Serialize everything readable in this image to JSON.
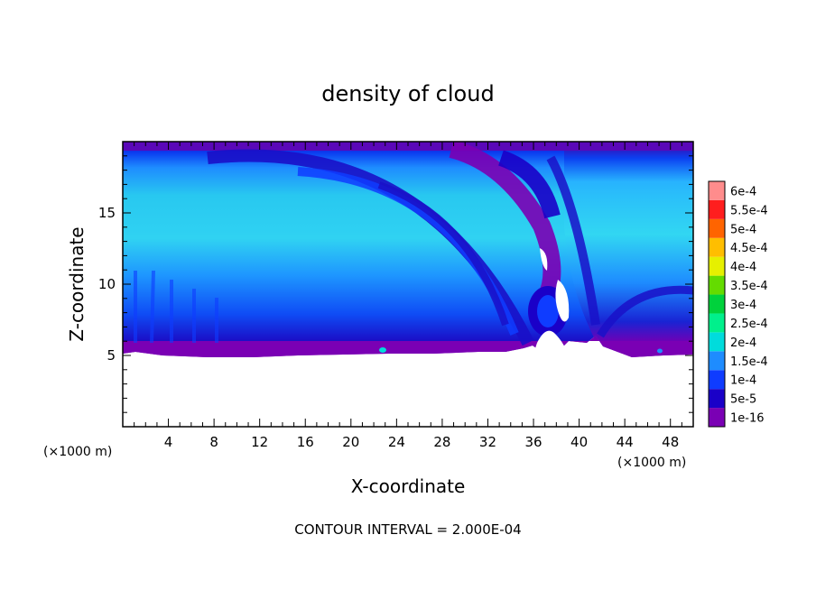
{
  "chart_data": {
    "type": "heatmap",
    "title": "density of cloud",
    "xlabel": "X-coordinate",
    "ylabel": "Z-coordinate",
    "x_unit": "(×1000 m)",
    "x_unit_right": "(×1000 m)",
    "xlim": [
      0,
      50
    ],
    "ylim": [
      0,
      20
    ],
    "x_ticks": [
      4,
      8,
      12,
      16,
      20,
      24,
      28,
      32,
      36,
      40,
      44,
      48
    ],
    "y_ticks": [
      5,
      10,
      15
    ],
    "footer": "CONTOUR INTERVAL = 2.000E-04",
    "colorbar": [
      {
        "label": "1e-16",
        "color": "#7a00b4"
      },
      {
        "label": "5e-5",
        "color": "#1a00c8"
      },
      {
        "label": "1e-4",
        "color": "#0f3cff"
      },
      {
        "label": "1.5e-4",
        "color": "#1e8cff"
      },
      {
        "label": "2e-4",
        "color": "#00dcdc"
      },
      {
        "label": "2.5e-4",
        "color": "#00f08c"
      },
      {
        "label": "3e-4",
        "color": "#00d23c"
      },
      {
        "label": "3.5e-4",
        "color": "#64dc00"
      },
      {
        "label": "4e-4",
        "color": "#e6f000"
      },
      {
        "label": "4.5e-4",
        "color": "#ffbe00"
      },
      {
        "label": "5e-4",
        "color": "#ff6400"
      },
      {
        "label": "5.5e-4",
        "color": "#ff1e1e"
      },
      {
        "label": "6e-4",
        "color": "#ff8c8c"
      }
    ],
    "cloud_base_km": 5,
    "cloud_top_km": 20,
    "extra_ticks_y": [
      1,
      2,
      3,
      4,
      6,
      7,
      8,
      9,
      11,
      12,
      13,
      14,
      16,
      17,
      18,
      19
    ]
  }
}
